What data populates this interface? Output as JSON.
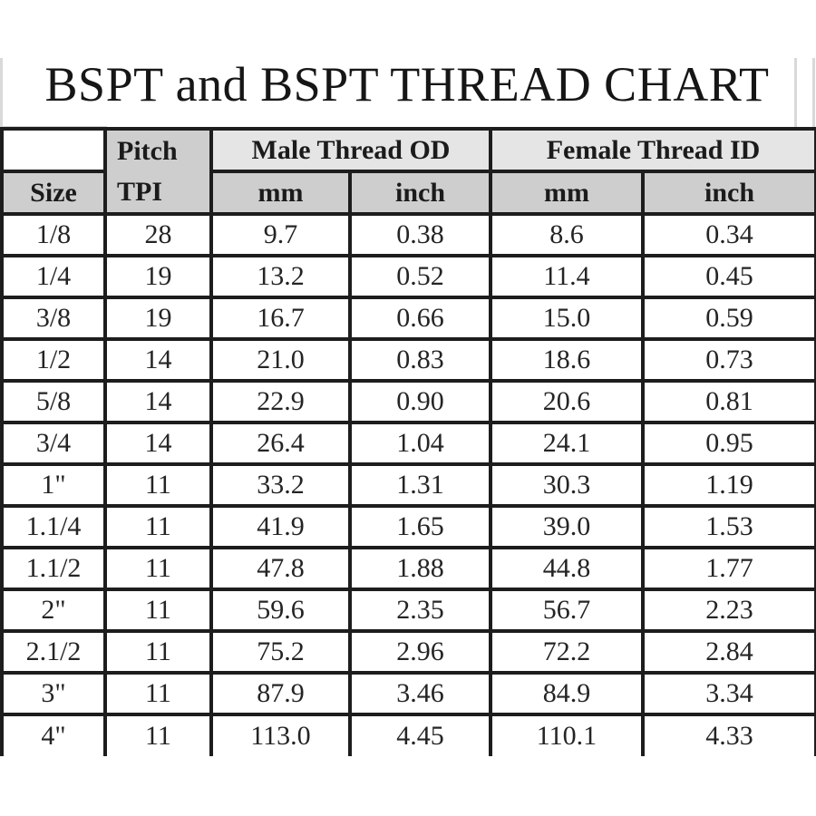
{
  "title": "BSPT and BSPT THREAD CHART",
  "table": {
    "header": {
      "size_label": "Size",
      "pitch_line1": "Pitch",
      "pitch_line2": "TPI",
      "male_group": "Male Thread OD",
      "female_group": "Female Thread ID",
      "male_mm": "mm",
      "male_inch": "inch",
      "female_mm": "mm",
      "female_inch": "inch"
    },
    "rows": [
      {
        "size": "1/8",
        "tpi": "28",
        "male_mm": "9.7",
        "male_inch": "0.38",
        "female_mm": "8.6",
        "female_inch": "0.34"
      },
      {
        "size": "1/4",
        "tpi": "19",
        "male_mm": "13.2",
        "male_inch": "0.52",
        "female_mm": "11.4",
        "female_inch": "0.45"
      },
      {
        "size": "3/8",
        "tpi": "19",
        "male_mm": "16.7",
        "male_inch": "0.66",
        "female_mm": "15.0",
        "female_inch": "0.59"
      },
      {
        "size": "1/2",
        "tpi": "14",
        "male_mm": "21.0",
        "male_inch": "0.83",
        "female_mm": "18.6",
        "female_inch": "0.73"
      },
      {
        "size": "5/8",
        "tpi": "14",
        "male_mm": "22.9",
        "male_inch": "0.90",
        "female_mm": "20.6",
        "female_inch": "0.81"
      },
      {
        "size": "3/4",
        "tpi": "14",
        "male_mm": "26.4",
        "male_inch": "1.04",
        "female_mm": "24.1",
        "female_inch": "0.95"
      },
      {
        "size": "1\"",
        "tpi": "11",
        "male_mm": "33.2",
        "male_inch": "1.31",
        "female_mm": "30.3",
        "female_inch": "1.19"
      },
      {
        "size": "1.1/4",
        "tpi": "11",
        "male_mm": "41.9",
        "male_inch": "1.65",
        "female_mm": "39.0",
        "female_inch": "1.53"
      },
      {
        "size": "1.1/2",
        "tpi": "11",
        "male_mm": "47.8",
        "male_inch": "1.88",
        "female_mm": "44.8",
        "female_inch": "1.77"
      },
      {
        "size": "2\"",
        "tpi": "11",
        "male_mm": "59.6",
        "male_inch": "2.35",
        "female_mm": "56.7",
        "female_inch": "2.23"
      },
      {
        "size": "2.1/2",
        "tpi": "11",
        "male_mm": "75.2",
        "male_inch": "2.96",
        "female_mm": "72.2",
        "female_inch": "2.84"
      },
      {
        "size": "3\"",
        "tpi": "11",
        "male_mm": "87.9",
        "male_inch": "3.46",
        "female_mm": "84.9",
        "female_inch": "3.34"
      },
      {
        "size": "4\"",
        "tpi": "11",
        "male_mm": "113.0",
        "male_inch": "4.45",
        "female_mm": "110.1",
        "female_inch": "4.33"
      }
    ]
  },
  "chart_data": {
    "type": "table",
    "title": "BSPT and BSPT THREAD CHART",
    "columns": [
      "Size",
      "Pitch TPI",
      "Male Thread OD mm",
      "Male Thread OD inch",
      "Female Thread ID mm",
      "Female Thread ID inch"
    ],
    "rows": [
      [
        "1/8",
        28,
        9.7,
        0.38,
        8.6,
        0.34
      ],
      [
        "1/4",
        19,
        13.2,
        0.52,
        11.4,
        0.45
      ],
      [
        "3/8",
        19,
        16.7,
        0.66,
        15.0,
        0.59
      ],
      [
        "1/2",
        14,
        21.0,
        0.83,
        18.6,
        0.73
      ],
      [
        "5/8",
        14,
        22.9,
        0.9,
        20.6,
        0.81
      ],
      [
        "3/4",
        14,
        26.4,
        1.04,
        24.1,
        0.95
      ],
      [
        "1\"",
        11,
        33.2,
        1.31,
        30.3,
        1.19
      ],
      [
        "1.1/4",
        11,
        41.9,
        1.65,
        39.0,
        1.53
      ],
      [
        "1.1/2",
        11,
        47.8,
        1.88,
        44.8,
        1.77
      ],
      [
        "2\"",
        11,
        59.6,
        2.35,
        56.7,
        2.23
      ],
      [
        "2.1/2",
        11,
        75.2,
        2.96,
        72.2,
        2.84
      ],
      [
        "3\"",
        11,
        87.9,
        3.46,
        84.9,
        3.34
      ],
      [
        "4\"",
        11,
        113.0,
        4.45,
        110.1,
        4.33
      ]
    ],
    "colors": {
      "border": "#1d1d1d",
      "group_header_bg": "#e5e5e5",
      "sub_header_bg": "#cecece",
      "row_bg": "#ffffff",
      "text": "#1b1b1b"
    }
  }
}
